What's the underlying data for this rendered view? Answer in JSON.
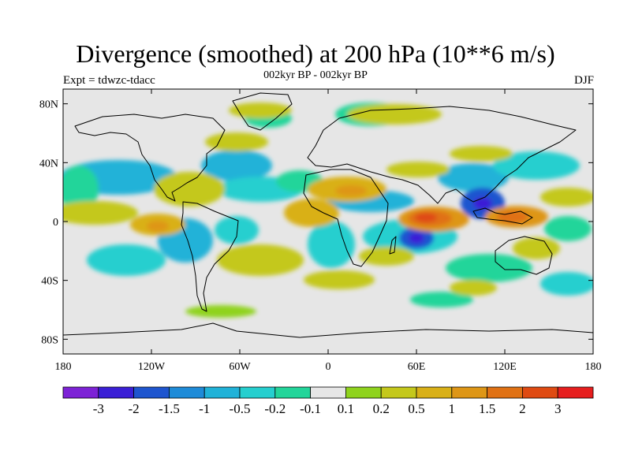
{
  "header": {
    "title": "Divergence (smoothed) at 200 hPa (10**6 m/s)",
    "subtitle": "002kyr BP - 002kyr BP",
    "experiment": "Expt = tdwzc-tdacc",
    "season": "DJF"
  },
  "map": {
    "lon_range": [
      -180,
      180
    ],
    "lat_range": [
      -90,
      90
    ],
    "background_color": "#e6e6e6",
    "lat_ticks": [
      {
        "value": 80,
        "label": "80N"
      },
      {
        "value": 40,
        "label": "40N"
      },
      {
        "value": 0,
        "label": "0"
      },
      {
        "value": -40,
        "label": "40S"
      },
      {
        "value": -80,
        "label": "80S"
      }
    ],
    "lon_ticks": [
      {
        "value": -180,
        "label": "180"
      },
      {
        "value": -120,
        "label": "120W"
      },
      {
        "value": -60,
        "label": "60W"
      },
      {
        "value": 0,
        "label": "0"
      },
      {
        "value": 60,
        "label": "60E"
      },
      {
        "value": 120,
        "label": "120E"
      },
      {
        "value": 180,
        "label": "180"
      }
    ]
  },
  "colorbar": {
    "colors": [
      "#7d22d6",
      "#3a1fd6",
      "#1e55cf",
      "#1e8bd8",
      "#20b2d8",
      "#25cfcf",
      "#22d59a",
      "#e6e6e6",
      "#8fd31d",
      "#c4c81b",
      "#d9b017",
      "#de9616",
      "#e07114",
      "#df4a12",
      "#e61e1e"
    ],
    "labels": [
      "-3",
      "-2",
      "-1.5",
      "-1",
      "-0.5",
      "-0.2",
      "-0.1",
      "0.1",
      "0.2",
      "0.5",
      "1",
      "1.5",
      "2",
      "3"
    ]
  }
}
